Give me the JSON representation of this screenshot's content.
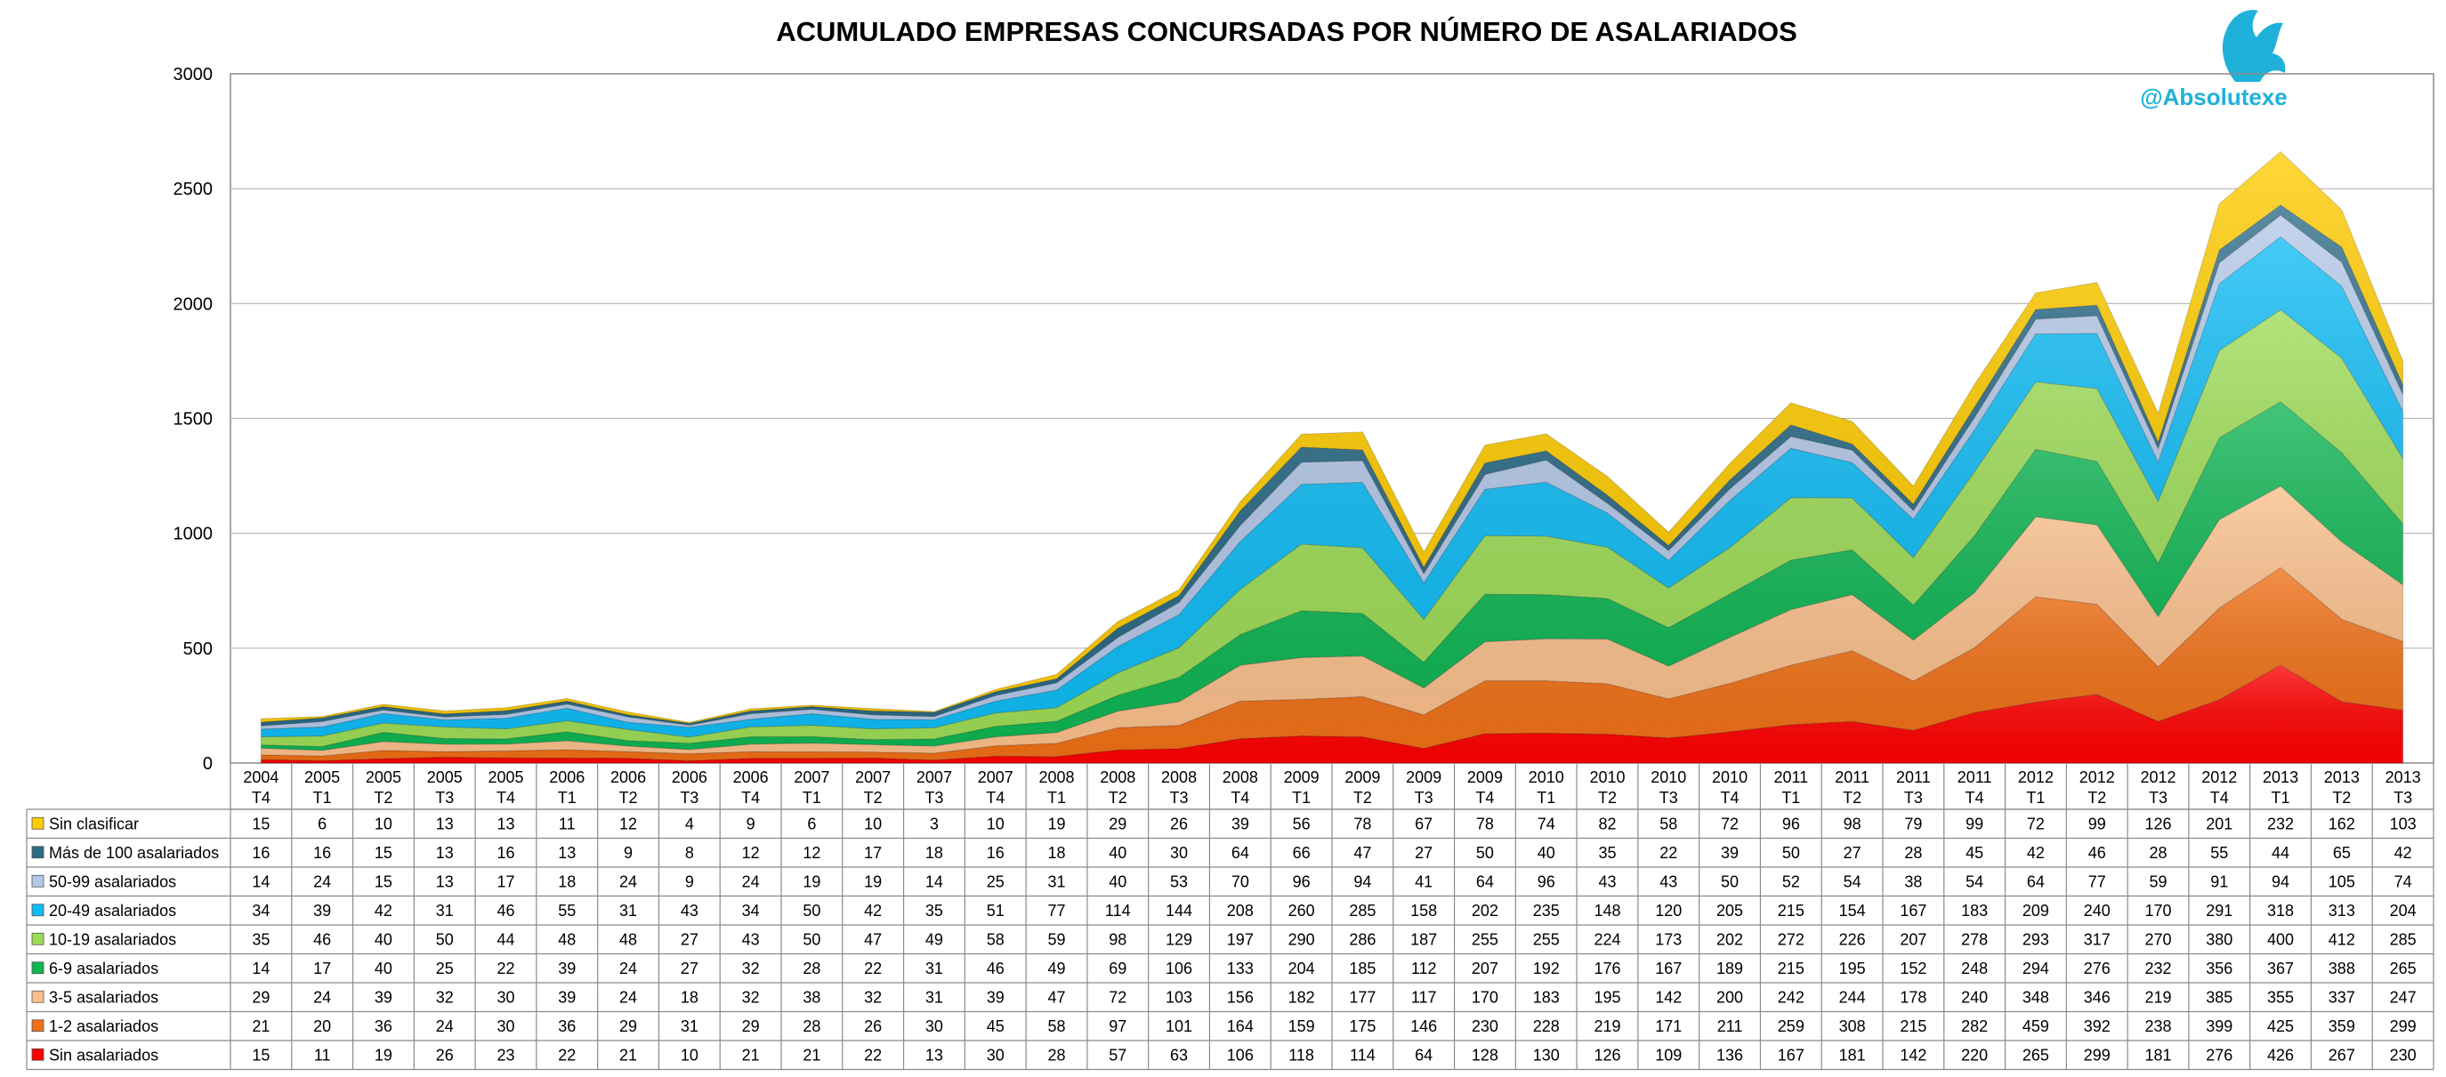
{
  "chart_data": {
    "type": "area",
    "stacked": true,
    "title": "ACUMULADO EMPRESAS CONCURSADAS POR NÚMERO DE ASALARIADOS",
    "brand": "@Absolutexe",
    "ylim": [
      0,
      3000
    ],
    "yticks": [
      0,
      500,
      1000,
      1500,
      2000,
      2500,
      3000
    ],
    "grid": true,
    "legend": "data-table",
    "x_years": [
      "2004",
      "2005",
      "2005",
      "2005",
      "2005",
      "2006",
      "2006",
      "2006",
      "2006",
      "2007",
      "2007",
      "2007",
      "2007",
      "2008",
      "2008",
      "2008",
      "2008",
      "2009",
      "2009",
      "2009",
      "2009",
      "2010",
      "2010",
      "2010",
      "2010",
      "2011",
      "2011",
      "2011",
      "2011",
      "2012",
      "2012",
      "2012",
      "2012",
      "2013",
      "2013",
      "2013"
    ],
    "x_quarters": [
      "T4",
      "T1",
      "T2",
      "T3",
      "T4",
      "T1",
      "T2",
      "T3",
      "T4",
      "T1",
      "T2",
      "T3",
      "T4",
      "T1",
      "T2",
      "T3",
      "T4",
      "T1",
      "T2",
      "T3",
      "T4",
      "T1",
      "T2",
      "T3",
      "T4",
      "T1",
      "T2",
      "T3",
      "T4",
      "T1",
      "T2",
      "T3",
      "T4",
      "T1",
      "T2",
      "T3"
    ],
    "series": [
      {
        "name": "Sin asalariados",
        "color": "#ff0000",
        "values": [
          15,
          11,
          19,
          26,
          23,
          22,
          21,
          10,
          21,
          21,
          22,
          13,
          30,
          28,
          57,
          63,
          106,
          118,
          114,
          64,
          128,
          130,
          126,
          109,
          136,
          167,
          181,
          142,
          220,
          265,
          299,
          181,
          276,
          426,
          267,
          230
        ]
      },
      {
        "name": "1-2 asalariados",
        "color": "#f07016",
        "values": [
          21,
          20,
          36,
          24,
          30,
          36,
          29,
          31,
          29,
          28,
          26,
          30,
          45,
          58,
          97,
          101,
          164,
          159,
          175,
          146,
          230,
          228,
          219,
          171,
          211,
          259,
          308,
          215,
          282,
          459,
          392,
          238,
          399,
          425,
          359,
          299
        ]
      },
      {
        "name": "3-5 asalariados",
        "color": "#fbc08c",
        "values": [
          29,
          24,
          39,
          32,
          30,
          39,
          24,
          18,
          32,
          38,
          32,
          31,
          39,
          47,
          72,
          103,
          156,
          182,
          177,
          117,
          170,
          183,
          195,
          142,
          200,
          242,
          244,
          178,
          240,
          348,
          346,
          219,
          385,
          355,
          337,
          247
        ]
      },
      {
        "name": "6-9 asalariados",
        "color": "#0fb553",
        "values": [
          14,
          17,
          40,
          25,
          22,
          39,
          24,
          27,
          32,
          28,
          22,
          31,
          46,
          49,
          69,
          106,
          133,
          204,
          185,
          112,
          207,
          192,
          176,
          167,
          189,
          215,
          195,
          152,
          248,
          294,
          276,
          232,
          356,
          367,
          388,
          265
        ]
      },
      {
        "name": "10-19 asalariados",
        "color": "#9ddc57",
        "values": [
          35,
          46,
          40,
          50,
          44,
          48,
          48,
          27,
          43,
          50,
          47,
          49,
          58,
          59,
          98,
          129,
          197,
          290,
          286,
          187,
          255,
          255,
          224,
          173,
          202,
          272,
          226,
          207,
          278,
          293,
          317,
          270,
          380,
          400,
          412,
          285
        ]
      },
      {
        "name": "20-49 asalariados",
        "color": "#10bcf5",
        "values": [
          34,
          39,
          42,
          31,
          46,
          55,
          31,
          43,
          34,
          50,
          42,
          35,
          51,
          77,
          114,
          144,
          208,
          260,
          285,
          158,
          202,
          235,
          148,
          120,
          205,
          215,
          154,
          167,
          183,
          209,
          240,
          170,
          291,
          318,
          313,
          204
        ]
      },
      {
        "name": "50-99 asalariados",
        "color": "#b4c8e8",
        "values": [
          14,
          24,
          15,
          13,
          17,
          18,
          24,
          9,
          24,
          19,
          19,
          14,
          25,
          31,
          40,
          53,
          70,
          96,
          94,
          41,
          64,
          96,
          43,
          43,
          50,
          52,
          54,
          38,
          54,
          64,
          77,
          59,
          91,
          94,
          105,
          74
        ]
      },
      {
        "name": "Más de 100 asalariados",
        "color": "#2c6b86",
        "values": [
          16,
          16,
          15,
          13,
          16,
          13,
          9,
          8,
          12,
          12,
          17,
          18,
          16,
          18,
          40,
          30,
          64,
          66,
          47,
          27,
          50,
          40,
          35,
          22,
          39,
          50,
          27,
          28,
          45,
          42,
          46,
          28,
          55,
          44,
          65,
          42
        ]
      },
      {
        "name": "Sin clasificar",
        "color": "#ffcc00",
        "values": [
          15,
          6,
          10,
          13,
          13,
          11,
          12,
          4,
          9,
          6,
          10,
          3,
          10,
          19,
          29,
          26,
          39,
          56,
          78,
          67,
          78,
          74,
          82,
          58,
          72,
          96,
          98,
          79,
          99,
          72,
          99,
          126,
          201,
          232,
          162,
          103
        ]
      }
    ]
  }
}
